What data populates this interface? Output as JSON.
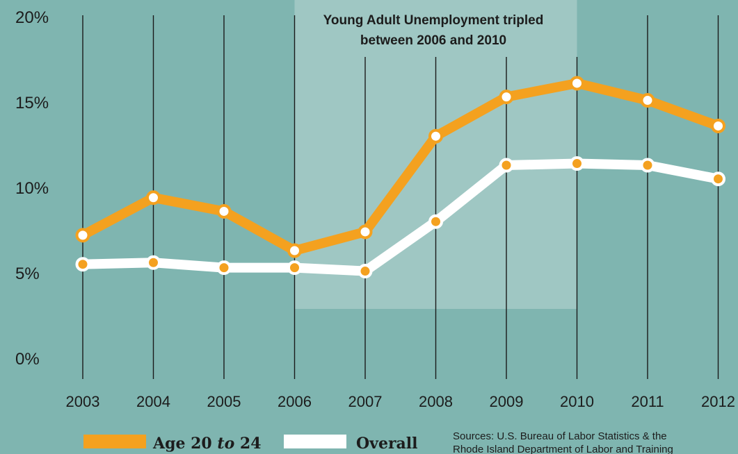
{
  "colors": {
    "background": "#7fb5b0",
    "highlight_band": "#9fc7c3",
    "gridline": "#1a1a1a",
    "series_age": "#f4a11f",
    "series_overall": "#ffffff",
    "text": "#1c1c1c"
  },
  "annotation": {
    "line1": "Young Adult Unemployment tripled",
    "line2": "between 2006 and 2010",
    "band_start": "2006",
    "band_end": "2010"
  },
  "legend": {
    "age_label_1": "Age 20",
    "age_label_2": "to",
    "age_label_3": "24",
    "overall_label": "Overall"
  },
  "sources": {
    "line1": "Sources: U.S. Bureau of Labor Statistics & the",
    "line2": "Rhode Island Department of Labor and Training"
  },
  "chart_data": {
    "type": "line",
    "categories": [
      "2003",
      "2004",
      "2005",
      "2006",
      "2007",
      "2008",
      "2009",
      "2010",
      "2011",
      "2012"
    ],
    "y_ticks": [
      "0%",
      "5%",
      "10%",
      "15%",
      "20%"
    ],
    "ylim": [
      0,
      20
    ],
    "grid": "vertical",
    "legend_position": "bottom-left",
    "series": [
      {
        "name": "Age 20 to 24",
        "values": [
          7.2,
          9.4,
          8.6,
          6.3,
          7.4,
          13.0,
          15.3,
          16.1,
          15.1,
          13.6
        ]
      },
      {
        "name": "Overall",
        "values": [
          5.5,
          5.6,
          5.3,
          5.3,
          5.1,
          8.0,
          11.3,
          11.4,
          11.3,
          10.5
        ]
      }
    ]
  }
}
